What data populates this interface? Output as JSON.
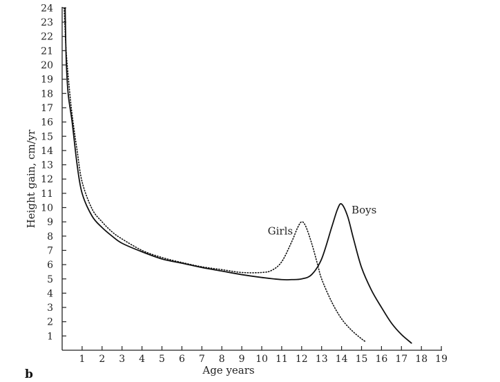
{
  "chart_data": {
    "type": "line",
    "panel_label": "b",
    "xlabel": "Age years",
    "ylabel": "Height gain, cm/yr",
    "xlim": [
      0,
      19
    ],
    "ylim": [
      0,
      24
    ],
    "x_ticks": [
      1,
      2,
      3,
      4,
      5,
      6,
      7,
      8,
      9,
      10,
      11,
      12,
      13,
      14,
      15,
      16,
      17,
      18,
      19
    ],
    "y_ticks": [
      1,
      2,
      3,
      4,
      5,
      6,
      7,
      8,
      9,
      10,
      11,
      12,
      13,
      14,
      15,
      16,
      17,
      18,
      19,
      20,
      21,
      22,
      23,
      24
    ],
    "grid": false,
    "series": [
      {
        "name": "Boys",
        "style": "solid",
        "color": "#111111",
        "label_at": [
          14.5,
          9.6
        ],
        "points": [
          [
            0.15,
            24
          ],
          [
            0.2,
            20.5
          ],
          [
            0.3,
            18
          ],
          [
            0.5,
            16
          ],
          [
            0.75,
            13
          ],
          [
            1,
            11
          ],
          [
            1.5,
            9.4
          ],
          [
            2,
            8.6
          ],
          [
            2.5,
            8.0
          ],
          [
            3,
            7.5
          ],
          [
            4,
            6.9
          ],
          [
            5,
            6.4
          ],
          [
            6,
            6.1
          ],
          [
            7,
            5.8
          ],
          [
            8,
            5.55
          ],
          [
            9,
            5.3
          ],
          [
            10,
            5.1
          ],
          [
            11,
            4.95
          ],
          [
            11.5,
            4.95
          ],
          [
            12,
            5.0
          ],
          [
            12.5,
            5.3
          ],
          [
            13,
            6.4
          ],
          [
            13.5,
            8.6
          ],
          [
            13.8,
            9.9
          ],
          [
            14.0,
            10.25
          ],
          [
            14.3,
            9.4
          ],
          [
            14.6,
            7.8
          ],
          [
            15,
            5.8
          ],
          [
            15.5,
            4.2
          ],
          [
            16,
            3.0
          ],
          [
            16.5,
            1.9
          ],
          [
            17,
            1.1
          ],
          [
            17.5,
            0.5
          ]
        ]
      },
      {
        "name": "Girls",
        "style": "dotted",
        "color": "#111111",
        "label_at": [
          10.3,
          8.1
        ],
        "points": [
          [
            0.1,
            24
          ],
          [
            0.2,
            21
          ],
          [
            0.35,
            18.5
          ],
          [
            0.5,
            16.5
          ],
          [
            0.75,
            14
          ],
          [
            1,
            11.8
          ],
          [
            1.5,
            9.9
          ],
          [
            2,
            9.0
          ],
          [
            2.5,
            8.3
          ],
          [
            3,
            7.8
          ],
          [
            4,
            7.0
          ],
          [
            5,
            6.5
          ],
          [
            6,
            6.15
          ],
          [
            7,
            5.85
          ],
          [
            8,
            5.65
          ],
          [
            9,
            5.45
          ],
          [
            10,
            5.45
          ],
          [
            10.5,
            5.6
          ],
          [
            11,
            6.2
          ],
          [
            11.5,
            7.6
          ],
          [
            11.8,
            8.6
          ],
          [
            12.0,
            9.0
          ],
          [
            12.2,
            8.7
          ],
          [
            12.5,
            7.5
          ],
          [
            12.8,
            6.0
          ],
          [
            13,
            5.0
          ],
          [
            13.5,
            3.4
          ],
          [
            14,
            2.2
          ],
          [
            14.5,
            1.4
          ],
          [
            15,
            0.8
          ],
          [
            15.2,
            0.6
          ]
        ]
      }
    ]
  }
}
